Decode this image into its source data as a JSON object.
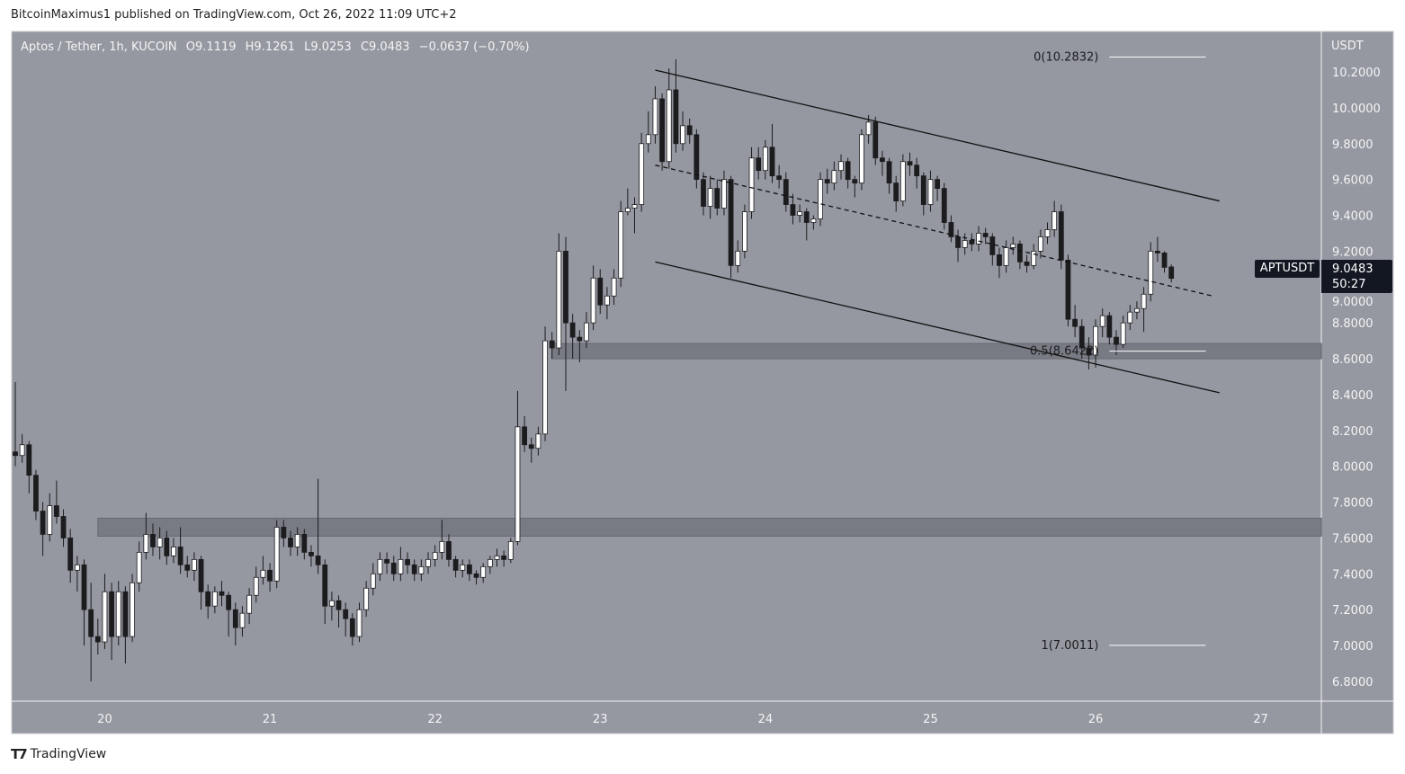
{
  "header": {
    "published": "BitcoinMaximus1 published on TradingView.com, Oct 26, 2022 11:09 UTC+2"
  },
  "legend": {
    "symbol": "Aptos / Tether, 1h, KUCOIN",
    "o_label": "O",
    "o": "9.1119",
    "h_label": "H",
    "h": "9.1261",
    "l_label": "L",
    "l": "9.0253",
    "c_label": "C",
    "c": "9.0483",
    "change": "−0.0637 (−0.70%)"
  },
  "price_tag": {
    "symbol": "APTUSDT",
    "price": "9.0483",
    "countdown": "50:27"
  },
  "footer": {
    "brand": "TradingView"
  },
  "colors": {
    "background": "#9598a1",
    "up": "#ffffff",
    "down": "#1c1c1e",
    "wick": "#1c1c1e",
    "zone": "#6f727b",
    "line": "#111111",
    "fib": "#ffffff"
  },
  "chart_data": {
    "type": "candlestick",
    "title": "Aptos / Tether, 1h, KUCOIN",
    "y_axis_label": "USDT",
    "ylim": [
      6.7,
      10.4
    ],
    "y_ticks": [
      "6.8000",
      "7.0000",
      "7.2000",
      "7.4000",
      "7.6000",
      "7.8000",
      "8.0000",
      "8.2000",
      "8.4000",
      "8.6000",
      "8.8000",
      "9.0000",
      "9.2000",
      "9.4000",
      "9.6000",
      "9.8000",
      "10.0000",
      "10.2000"
    ],
    "x_ticks": [
      {
        "label": "20",
        "time": "2022-10-20T00:00"
      },
      {
        "label": "21",
        "time": "2022-10-21T00:00"
      },
      {
        "label": "22",
        "time": "2022-10-22T00:00"
      },
      {
        "label": "23",
        "time": "2022-10-23T00:00"
      },
      {
        "label": "24",
        "time": "2022-10-24T00:00"
      },
      {
        "label": "25",
        "time": "2022-10-25T00:00"
      },
      {
        "label": "26",
        "time": "2022-10-26T00:00"
      },
      {
        "label": "27",
        "time": "2022-10-27T00:00"
      }
    ],
    "first_candle_time": "2022-10-19T11:00",
    "interval": "1h",
    "candles_ohlc": [
      [
        8.08,
        8.47,
        8.0,
        8.06
      ],
      [
        8.06,
        8.18,
        8.02,
        8.12
      ],
      [
        8.12,
        8.14,
        7.85,
        7.95
      ],
      [
        7.95,
        7.98,
        7.7,
        7.75
      ],
      [
        7.75,
        7.8,
        7.5,
        7.62
      ],
      [
        7.62,
        7.85,
        7.58,
        7.78
      ],
      [
        7.78,
        7.92,
        7.68,
        7.72
      ],
      [
        7.72,
        7.76,
        7.55,
        7.6
      ],
      [
        7.6,
        7.65,
        7.35,
        7.42
      ],
      [
        7.42,
        7.5,
        7.3,
        7.45
      ],
      [
        7.45,
        7.48,
        7.0,
        7.2
      ],
      [
        7.2,
        7.35,
        6.8,
        7.05
      ],
      [
        7.05,
        7.15,
        6.95,
        7.02
      ],
      [
        7.02,
        7.4,
        6.98,
        7.3
      ],
      [
        7.3,
        7.35,
        6.92,
        7.05
      ],
      [
        7.05,
        7.36,
        7.0,
        7.3
      ],
      [
        7.3,
        7.33,
        6.9,
        7.05
      ],
      [
        7.05,
        7.4,
        7.02,
        7.35
      ],
      [
        7.35,
        7.58,
        7.3,
        7.52
      ],
      [
        7.52,
        7.74,
        7.48,
        7.62
      ],
      [
        7.62,
        7.68,
        7.5,
        7.55
      ],
      [
        7.55,
        7.66,
        7.48,
        7.6
      ],
      [
        7.6,
        7.64,
        7.45,
        7.5
      ],
      [
        7.5,
        7.6,
        7.46,
        7.55
      ],
      [
        7.55,
        7.66,
        7.4,
        7.45
      ],
      [
        7.45,
        7.5,
        7.38,
        7.42
      ],
      [
        7.42,
        7.52,
        7.36,
        7.48
      ],
      [
        7.48,
        7.5,
        7.2,
        7.3
      ],
      [
        7.3,
        7.34,
        7.15,
        7.22
      ],
      [
        7.22,
        7.33,
        7.18,
        7.3
      ],
      [
        7.3,
        7.36,
        7.22,
        7.28
      ],
      [
        7.28,
        7.3,
        7.05,
        7.2
      ],
      [
        7.2,
        7.24,
        7.0,
        7.1
      ],
      [
        7.1,
        7.22,
        7.05,
        7.18
      ],
      [
        7.18,
        7.32,
        7.12,
        7.28
      ],
      [
        7.28,
        7.44,
        7.24,
        7.38
      ],
      [
        7.38,
        7.5,
        7.34,
        7.42
      ],
      [
        7.42,
        7.46,
        7.3,
        7.36
      ],
      [
        7.36,
        7.7,
        7.32,
        7.66
      ],
      [
        7.66,
        7.7,
        7.55,
        7.6
      ],
      [
        7.6,
        7.64,
        7.5,
        7.55
      ],
      [
        7.55,
        7.66,
        7.5,
        7.62
      ],
      [
        7.62,
        7.65,
        7.48,
        7.52
      ],
      [
        7.52,
        7.56,
        7.44,
        7.5
      ],
      [
        7.5,
        7.93,
        7.4,
        7.45
      ],
      [
        7.45,
        7.48,
        7.12,
        7.22
      ],
      [
        7.22,
        7.3,
        7.14,
        7.25
      ],
      [
        7.25,
        7.28,
        7.1,
        7.2
      ],
      [
        7.2,
        7.24,
        7.05,
        7.15
      ],
      [
        7.15,
        7.18,
        7.0,
        7.05
      ],
      [
        7.05,
        7.24,
        7.02,
        7.2
      ],
      [
        7.2,
        7.36,
        7.16,
        7.32
      ],
      [
        7.32,
        7.46,
        7.28,
        7.4
      ],
      [
        7.4,
        7.52,
        7.36,
        7.48
      ],
      [
        7.48,
        7.52,
        7.4,
        7.46
      ],
      [
        7.46,
        7.5,
        7.36,
        7.4
      ],
      [
        7.4,
        7.55,
        7.36,
        7.48
      ],
      [
        7.48,
        7.52,
        7.4,
        7.45
      ],
      [
        7.45,
        7.48,
        7.36,
        7.4
      ],
      [
        7.4,
        7.48,
        7.36,
        7.44
      ],
      [
        7.44,
        7.52,
        7.4,
        7.48
      ],
      [
        7.48,
        7.56,
        7.44,
        7.52
      ],
      [
        7.52,
        7.7,
        7.48,
        7.58
      ],
      [
        7.58,
        7.62,
        7.44,
        7.48
      ],
      [
        7.48,
        7.5,
        7.38,
        7.42
      ],
      [
        7.42,
        7.48,
        7.38,
        7.45
      ],
      [
        7.45,
        7.48,
        7.36,
        7.4
      ],
      [
        7.4,
        7.42,
        7.34,
        7.38
      ],
      [
        7.38,
        7.46,
        7.35,
        7.44
      ],
      [
        7.44,
        7.5,
        7.4,
        7.48
      ],
      [
        7.48,
        7.54,
        7.44,
        7.5
      ],
      [
        7.5,
        7.53,
        7.44,
        7.48
      ],
      [
        7.48,
        7.6,
        7.46,
        7.58
      ],
      [
        7.58,
        8.42,
        7.56,
        8.22
      ],
      [
        8.22,
        8.28,
        8.08,
        8.12
      ],
      [
        8.12,
        8.16,
        8.02,
        8.1
      ],
      [
        8.1,
        8.22,
        8.06,
        8.18
      ],
      [
        8.18,
        8.78,
        8.14,
        8.7
      ],
      [
        8.7,
        8.75,
        8.6,
        8.66
      ],
      [
        8.66,
        9.3,
        8.62,
        9.2
      ],
      [
        9.2,
        9.28,
        8.42,
        8.8
      ],
      [
        8.8,
        8.85,
        8.6,
        8.72
      ],
      [
        8.72,
        8.76,
        8.58,
        8.7
      ],
      [
        8.7,
        8.86,
        8.66,
        8.8
      ],
      [
        8.8,
        9.12,
        8.76,
        9.05
      ],
      [
        9.05,
        9.1,
        8.85,
        8.9
      ],
      [
        8.9,
        9.0,
        8.82,
        8.95
      ],
      [
        8.95,
        9.1,
        8.9,
        9.05
      ],
      [
        9.05,
        9.48,
        9.0,
        9.42
      ],
      [
        9.42,
        9.55,
        9.4,
        9.44
      ],
      [
        9.44,
        9.5,
        9.3,
        9.46
      ],
      [
        9.46,
        9.86,
        9.42,
        9.8
      ],
      [
        9.8,
        9.98,
        9.75,
        9.85
      ],
      [
        9.85,
        10.12,
        9.8,
        10.05
      ],
      [
        10.05,
        10.08,
        9.65,
        9.7
      ],
      [
        9.7,
        10.22,
        9.66,
        10.1
      ],
      [
        10.1,
        10.27,
        9.75,
        9.8
      ],
      [
        9.8,
        9.98,
        9.76,
        9.9
      ],
      [
        9.9,
        9.94,
        9.8,
        9.85
      ],
      [
        9.85,
        9.88,
        9.55,
        9.6
      ],
      [
        9.6,
        9.64,
        9.4,
        9.45
      ],
      [
        9.45,
        9.62,
        9.38,
        9.55
      ],
      [
        9.55,
        9.6,
        9.4,
        9.44
      ],
      [
        9.44,
        9.65,
        9.4,
        9.6
      ],
      [
        9.6,
        9.62,
        9.05,
        9.12
      ],
      [
        9.12,
        9.26,
        9.08,
        9.2
      ],
      [
        9.2,
        9.46,
        9.16,
        9.42
      ],
      [
        9.42,
        9.78,
        9.38,
        9.72
      ],
      [
        9.72,
        9.78,
        9.6,
        9.65
      ],
      [
        9.65,
        9.82,
        9.6,
        9.78
      ],
      [
        9.78,
        9.91,
        9.58,
        9.62
      ],
      [
        9.62,
        9.68,
        9.55,
        9.6
      ],
      [
        9.6,
        9.64,
        9.42,
        9.46
      ],
      [
        9.46,
        9.52,
        9.35,
        9.4
      ],
      [
        9.4,
        9.46,
        9.36,
        9.42
      ],
      [
        9.42,
        9.44,
        9.26,
        9.36
      ],
      [
        9.36,
        9.4,
        9.32,
        9.38
      ],
      [
        9.38,
        9.64,
        9.34,
        9.6
      ],
      [
        9.6,
        9.66,
        9.52,
        9.58
      ],
      [
        9.58,
        9.7,
        9.54,
        9.65
      ],
      [
        9.65,
        9.74,
        9.6,
        9.7
      ],
      [
        9.7,
        9.72,
        9.55,
        9.6
      ],
      [
        9.6,
        9.62,
        9.5,
        9.58
      ],
      [
        9.58,
        9.88,
        9.54,
        9.85
      ],
      [
        9.85,
        9.96,
        9.8,
        9.92
      ],
      [
        9.92,
        9.95,
        9.68,
        9.72
      ],
      [
        9.72,
        9.76,
        9.62,
        9.7
      ],
      [
        9.7,
        9.72,
        9.52,
        9.58
      ],
      [
        9.58,
        9.62,
        9.42,
        9.48
      ],
      [
        9.48,
        9.74,
        9.45,
        9.7
      ],
      [
        9.7,
        9.75,
        9.62,
        9.68
      ],
      [
        9.68,
        9.72,
        9.55,
        9.62
      ],
      [
        9.62,
        9.64,
        9.4,
        9.46
      ],
      [
        9.46,
        9.65,
        9.42,
        9.6
      ],
      [
        9.6,
        9.62,
        9.48,
        9.55
      ],
      [
        9.55,
        9.58,
        9.32,
        9.36
      ],
      [
        9.36,
        9.4,
        9.25,
        9.28
      ],
      [
        9.28,
        9.32,
        9.14,
        9.22
      ],
      [
        9.22,
        9.3,
        9.18,
        9.26
      ],
      [
        9.26,
        9.3,
        9.2,
        9.24
      ],
      [
        9.24,
        9.34,
        9.2,
        9.3
      ],
      [
        9.3,
        9.33,
        9.24,
        9.28
      ],
      [
        9.28,
        9.3,
        9.12,
        9.18
      ],
      [
        9.18,
        9.22,
        9.05,
        9.12
      ],
      [
        9.12,
        9.26,
        9.08,
        9.22
      ],
      [
        9.22,
        9.28,
        9.18,
        9.24
      ],
      [
        9.24,
        9.26,
        9.1,
        9.14
      ],
      [
        9.14,
        9.18,
        9.08,
        9.12
      ],
      [
        9.12,
        9.24,
        9.1,
        9.2
      ],
      [
        9.2,
        9.32,
        9.16,
        9.28
      ],
      [
        9.28,
        9.36,
        9.24,
        9.32
      ],
      [
        9.32,
        9.48,
        9.28,
        9.42
      ],
      [
        9.42,
        9.46,
        9.1,
        9.15
      ],
      [
        9.15,
        9.18,
        8.78,
        8.82
      ],
      [
        8.82,
        8.9,
        8.72,
        8.78
      ],
      [
        8.78,
        8.82,
        8.6,
        8.66
      ],
      [
        8.66,
        8.72,
        8.54,
        8.62
      ],
      [
        8.62,
        8.82,
        8.55,
        8.78
      ],
      [
        8.78,
        8.88,
        8.72,
        8.84
      ],
      [
        8.84,
        8.86,
        8.68,
        8.72
      ],
      [
        8.72,
        8.76,
        8.62,
        8.68
      ],
      [
        8.68,
        8.84,
        8.66,
        8.8
      ],
      [
        8.8,
        8.9,
        8.76,
        8.86
      ],
      [
        8.86,
        8.92,
        8.82,
        8.88
      ],
      [
        8.88,
        9.0,
        8.75,
        8.96
      ],
      [
        8.96,
        9.25,
        8.92,
        9.2
      ],
      [
        9.2,
        9.28,
        9.14,
        9.19
      ],
      [
        9.19,
        9.2,
        9.08,
        9.11
      ],
      [
        9.1119,
        9.1261,
        9.0253,
        9.0483
      ]
    ],
    "zones": [
      {
        "from": "2022-10-22T17:00",
        "low": 8.6,
        "high": 8.685
      },
      {
        "from": "2022-10-19T23:00",
        "low": 7.61,
        "high": 7.71
      }
    ],
    "trendlines": [
      {
        "name": "channel-upper",
        "style": "solid",
        "start": {
          "time": "2022-10-23T08:00",
          "price": 10.21
        },
        "end": {
          "time": "2022-10-26T18:00",
          "price": 9.48
        }
      },
      {
        "name": "channel-lower",
        "style": "solid",
        "start": {
          "time": "2022-10-23T08:00",
          "price": 9.14
        },
        "end": {
          "time": "2022-10-26T18:00",
          "price": 8.41
        }
      },
      {
        "name": "channel-mid",
        "style": "dashed",
        "start": {
          "time": "2022-10-23T08:00",
          "price": 9.68
        },
        "end": {
          "time": "2022-10-26T17:00",
          "price": 8.95
        }
      }
    ],
    "fib_levels": [
      {
        "label": "0(10.2832)",
        "price": 10.2832
      },
      {
        "label": "0.5(8.6422)",
        "price": 8.6422
      },
      {
        "label": "1(7.0011)",
        "price": 7.0011
      }
    ],
    "fib_span": {
      "from": "2022-10-26T02:00",
      "to": "2022-10-26T16:00"
    }
  }
}
